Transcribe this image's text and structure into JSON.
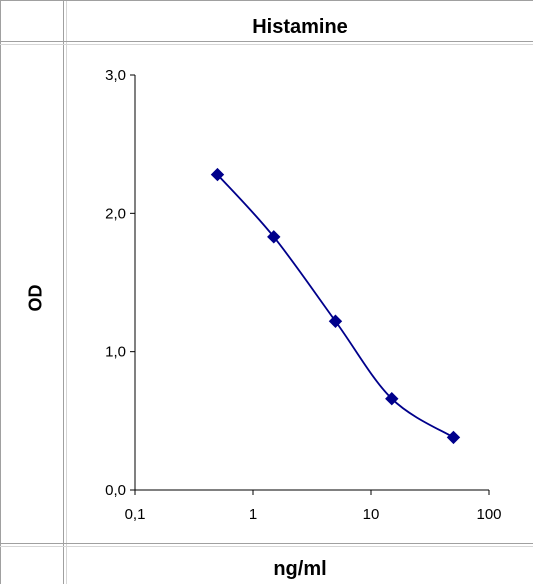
{
  "chart_data": {
    "type": "line",
    "title": "Histamine",
    "xlabel": "ng/ml",
    "ylabel": "OD",
    "x_scale": "log",
    "xlim": [
      0.1,
      100
    ],
    "ylim": [
      0.0,
      3.0
    ],
    "xticks": [
      0.1,
      1,
      10,
      100
    ],
    "xtick_labels": [
      "0,1",
      "1",
      "10",
      "100"
    ],
    "yticks": [
      0.0,
      1.0,
      2.0,
      3.0
    ],
    "ytick_labels": [
      "0,0",
      "1,0",
      "2,0",
      "3,0"
    ],
    "grid": false,
    "series": [
      {
        "color": "#00008b",
        "marker": "diamond",
        "x": [
          0.5,
          1.5,
          5,
          15,
          50
        ],
        "y": [
          2.28,
          1.83,
          1.22,
          0.66,
          0.38
        ]
      }
    ]
  }
}
